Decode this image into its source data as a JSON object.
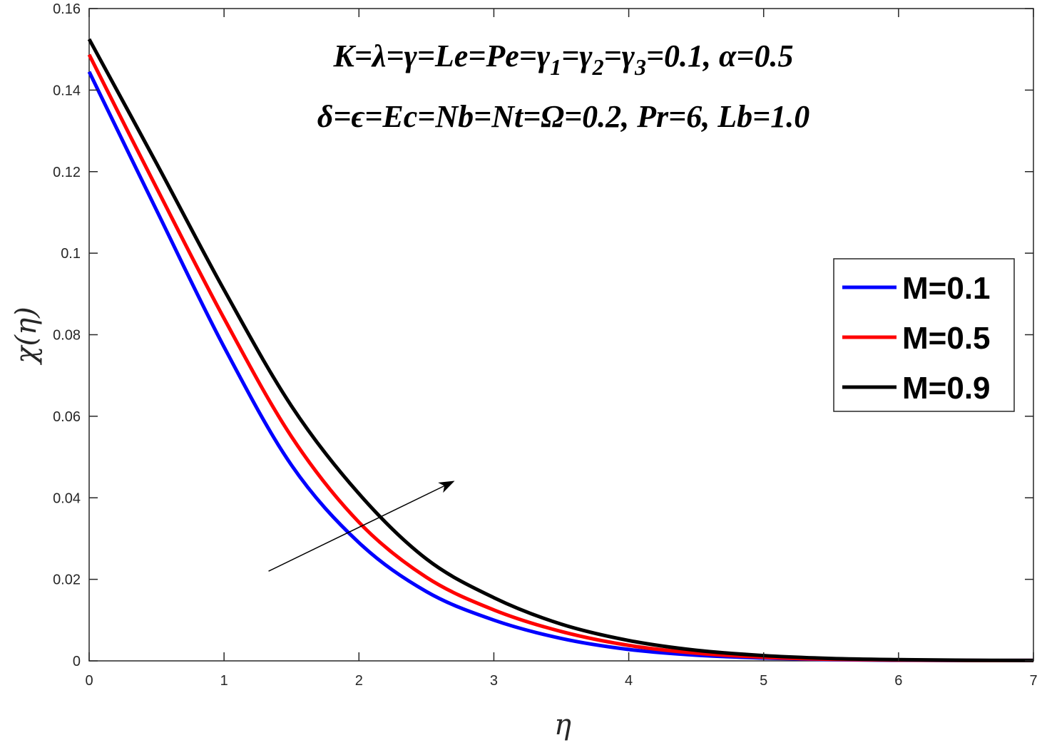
{
  "chart_data": {
    "type": "line",
    "xlabel": "η",
    "ylabel": "χ(η)",
    "xlim": [
      0,
      7
    ],
    "ylim": [
      0,
      0.16
    ],
    "xticks": [
      "0",
      "1",
      "2",
      "3",
      "4",
      "5",
      "6",
      "7"
    ],
    "yticks": [
      "0",
      "0.02",
      "0.04",
      "0.06",
      "0.08",
      "0.1",
      "0.12",
      "0.14",
      "0.16"
    ],
    "grid": false,
    "legend_position": "right",
    "annotations": {
      "line1": "K=λ=γ=Le=Pe=γ1=γ2=γ3=0.1, α=0.5",
      "line2": "δ=ϵ=Ec=Nb=Nt=Ω=0.2, Pr=6, Lb=1.0"
    },
    "arrow": {
      "from": [
        1.33,
        0.022
      ],
      "to": [
        2.7,
        0.044
      ]
    },
    "x": [
      0,
      0.5,
      1,
      1.5,
      2,
      2.5,
      3,
      3.5,
      4,
      4.5,
      5,
      5.5,
      6,
      6.5,
      7
    ],
    "series": [
      {
        "name": "M=0.1",
        "color": "#0000ff",
        "values": [
          0.1445,
          0.1105,
          0.077,
          0.048,
          0.029,
          0.017,
          0.01,
          0.0055,
          0.0028,
          0.0014,
          0.0007,
          0.0003,
          0.00015,
          0.0001,
          0.0001
        ]
      },
      {
        "name": "M=0.5",
        "color": "#ff0000",
        "values": [
          0.1487,
          0.116,
          0.084,
          0.055,
          0.034,
          0.0205,
          0.0125,
          0.0072,
          0.0038,
          0.0019,
          0.0009,
          0.0004,
          0.0002,
          0.0001,
          0.0001
        ]
      },
      {
        "name": "M=0.9",
        "color": "#000000",
        "values": [
          0.1525,
          0.122,
          0.091,
          0.0625,
          0.041,
          0.025,
          0.0155,
          0.009,
          0.005,
          0.0026,
          0.0013,
          0.0006,
          0.0003,
          0.00015,
          0.0001
        ]
      }
    ]
  }
}
